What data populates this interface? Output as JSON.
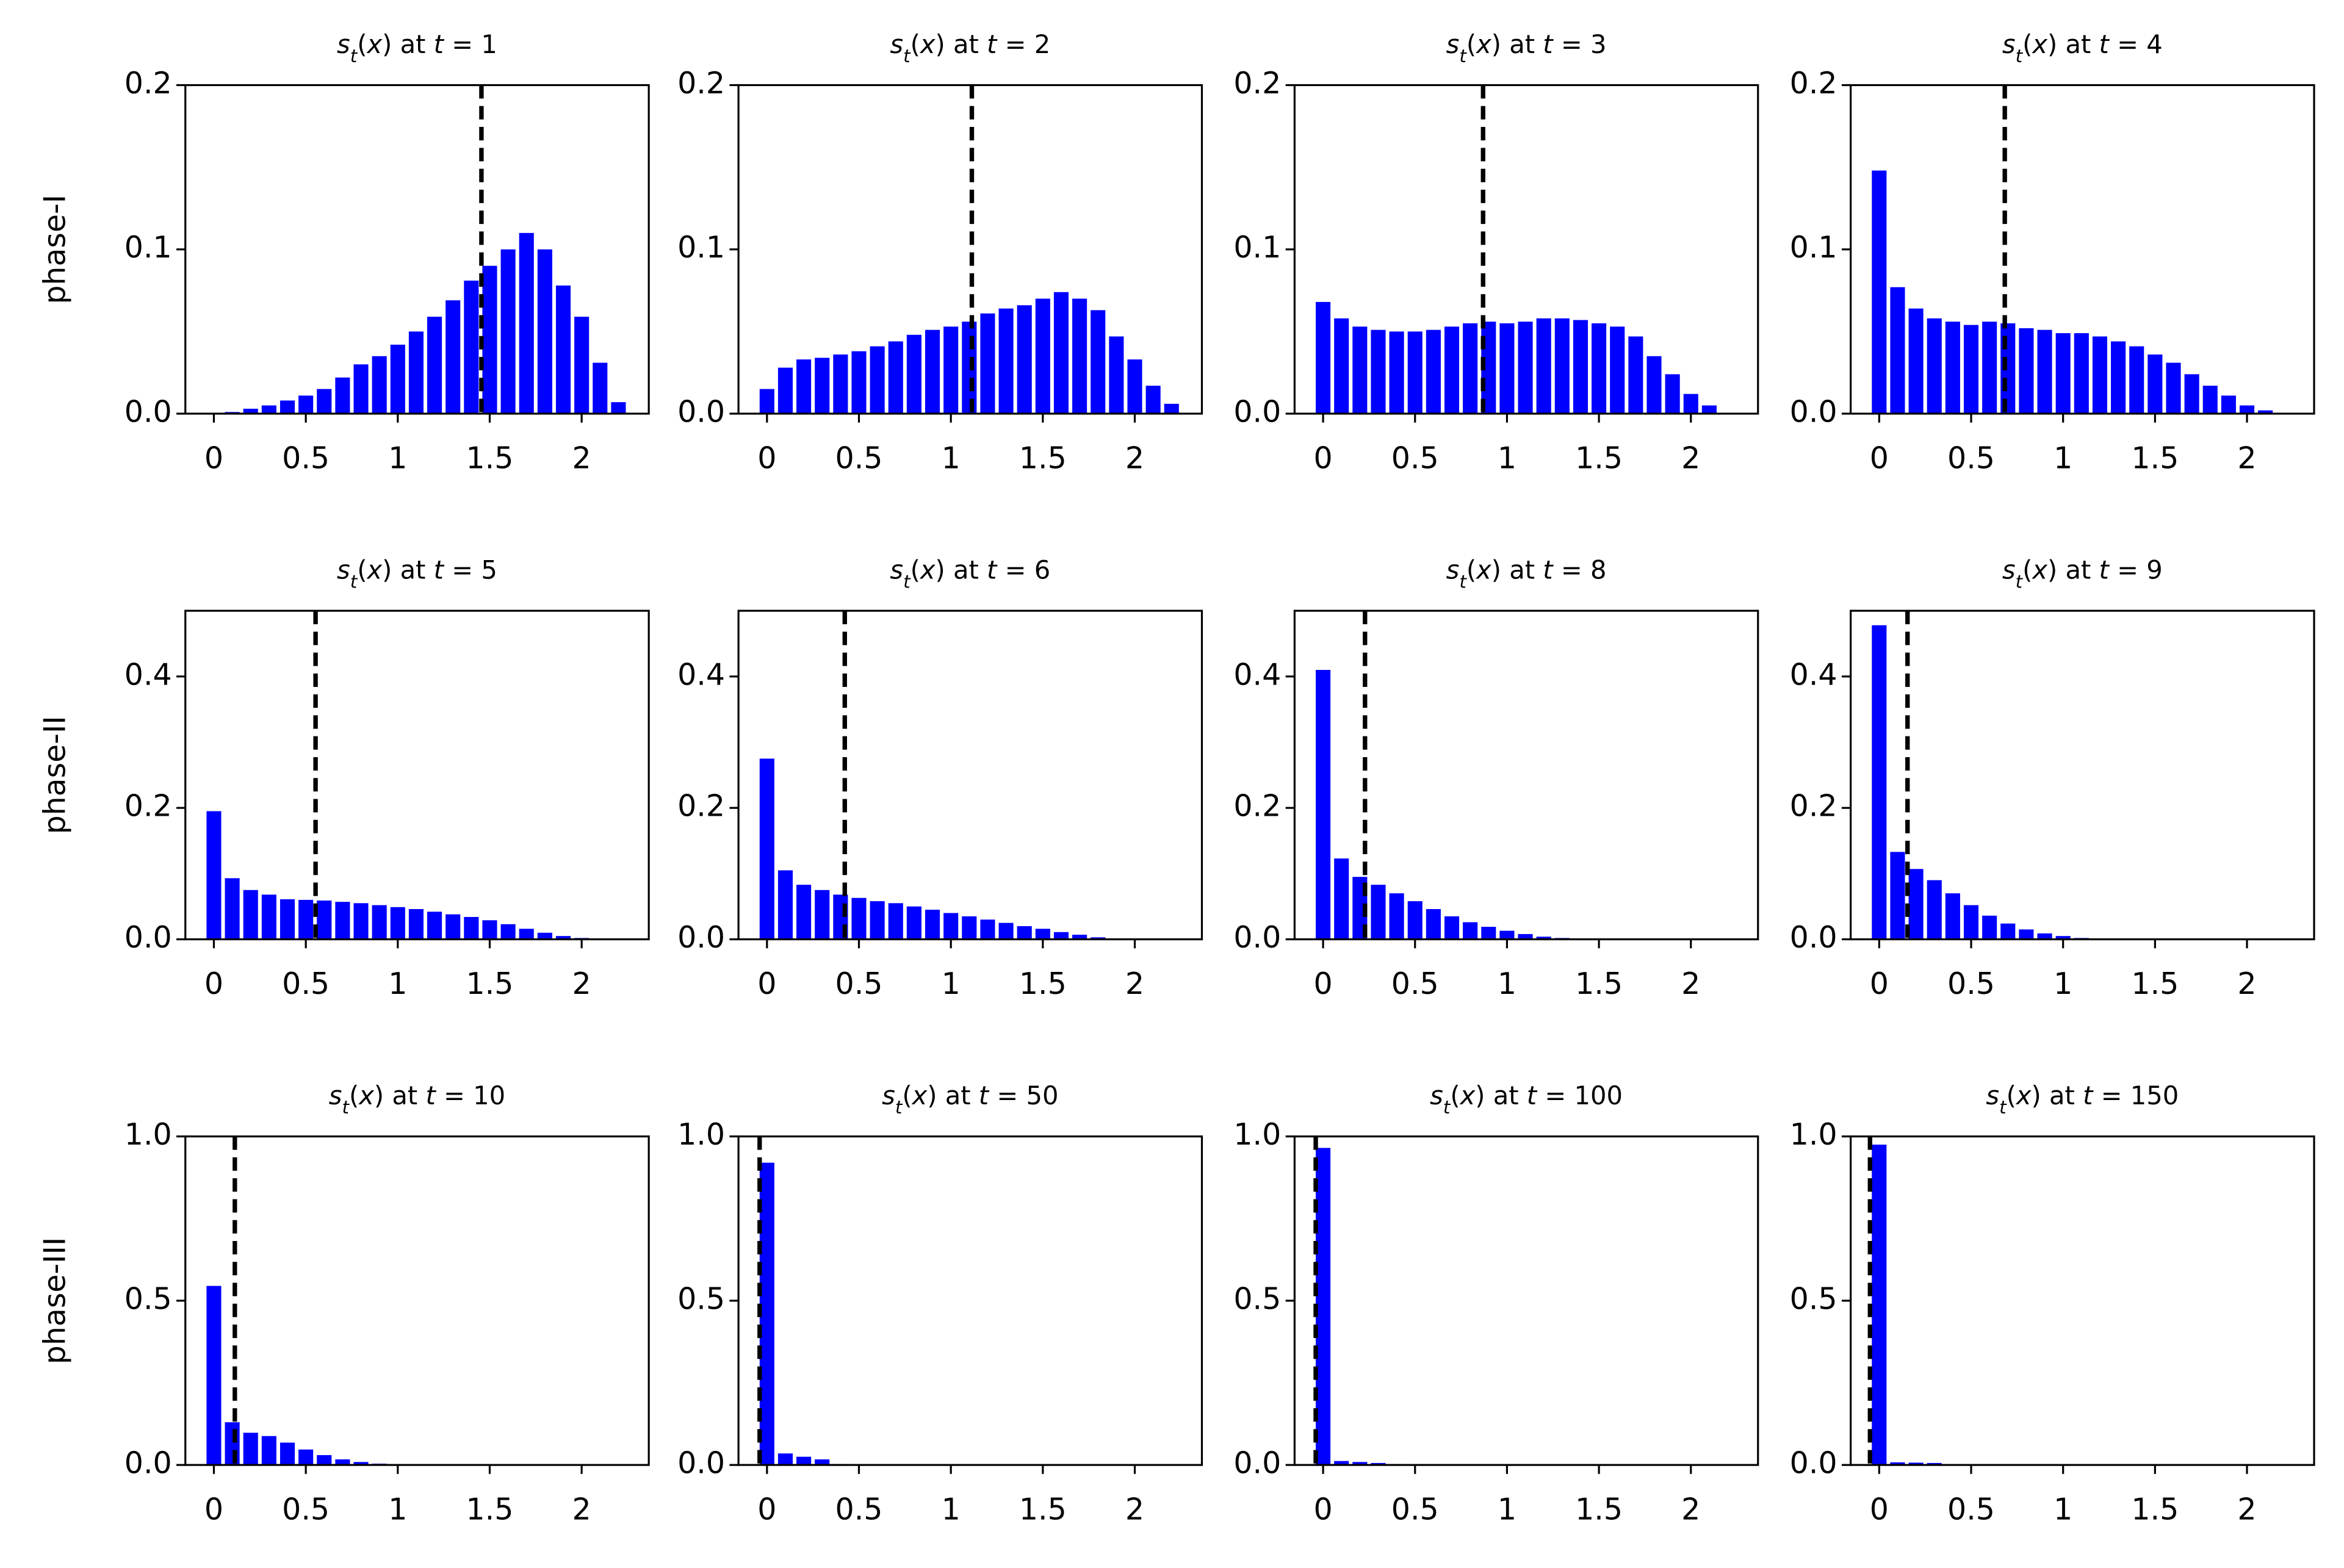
{
  "chart_data": [
    {
      "type": "bar",
      "title": "st(x) at t = 1",
      "ylabel": "phase-I",
      "color": "#0000ff",
      "vline": 1.455,
      "x": [
        0,
        0.1,
        0.2,
        0.3,
        0.4,
        0.5,
        0.6,
        0.7,
        0.8,
        0.9,
        1,
        1.1,
        1.2,
        1.3,
        1.4,
        1.5,
        1.6,
        1.7,
        1.8,
        1.9,
        2,
        2.1,
        2.2
      ],
      "values": [
        0,
        0.001,
        0.003,
        0.005,
        0.008,
        0.011,
        0.015,
        0.022,
        0.03,
        0.035,
        0.042,
        0.05,
        0.059,
        0.069,
        0.081,
        0.09,
        0.1,
        0.11,
        0.1,
        0.078,
        0.059,
        0.031,
        0.007
      ],
      "xlim": [
        -0.155,
        2.365
      ],
      "ylim": [
        0,
        0.2
      ],
      "xticks": [
        0,
        0.5,
        1,
        1.5,
        2
      ],
      "yticks": [
        {
          "value": 0,
          "label": "0.0"
        },
        0.1,
        0.2
      ]
    },
    {
      "type": "bar",
      "title": "st(x) at t = 2",
      "color": "#0000ff",
      "vline": 1.114,
      "x": [
        0,
        0.1,
        0.2,
        0.3,
        0.4,
        0.5,
        0.6,
        0.7,
        0.8,
        0.9,
        1,
        1.1,
        1.2,
        1.3,
        1.4,
        1.5,
        1.6,
        1.7,
        1.8,
        1.9,
        2,
        2.1,
        2.2
      ],
      "values": [
        0.015,
        0.028,
        0.033,
        0.034,
        0.036,
        0.038,
        0.041,
        0.044,
        0.048,
        0.051,
        0.053,
        0.056,
        0.061,
        0.064,
        0.066,
        0.07,
        0.074,
        0.07,
        0.063,
        0.047,
        0.033,
        0.017,
        0.006
      ],
      "xlim": [
        -0.155,
        2.365
      ],
      "ylim": [
        0,
        0.2
      ],
      "xticks": [
        0,
        0.5,
        1,
        1.5,
        2
      ],
      "yticks": [
        {
          "value": 0,
          "label": "0.0"
        },
        0.1,
        0.2
      ]
    },
    {
      "type": "bar",
      "title": "st(x) at t = 3",
      "color": "#0000ff",
      "vline": 0.87,
      "x": [
        0,
        0.1,
        0.2,
        0.3,
        0.4,
        0.5,
        0.6,
        0.7,
        0.8,
        0.9,
        1,
        1.1,
        1.2,
        1.3,
        1.4,
        1.5,
        1.6,
        1.7,
        1.8,
        1.9,
        2,
        2.1,
        2.2
      ],
      "values": [
        0.068,
        0.058,
        0.053,
        0.051,
        0.05,
        0.05,
        0.051,
        0.053,
        0.055,
        0.056,
        0.055,
        0.056,
        0.058,
        0.058,
        0.057,
        0.055,
        0.053,
        0.047,
        0.035,
        0.024,
        0.012,
        0.005,
        0
      ],
      "xlim": [
        -0.155,
        2.365
      ],
      "ylim": [
        0,
        0.2
      ],
      "xticks": [
        0,
        0.5,
        1,
        1.5,
        2
      ],
      "yticks": [
        {
          "value": 0,
          "label": "0.0"
        },
        0.1,
        0.2
      ]
    },
    {
      "type": "bar",
      "title": "st(x) at t = 4",
      "color": "#0000ff",
      "vline": 0.683,
      "x": [
        0,
        0.1,
        0.2,
        0.3,
        0.4,
        0.5,
        0.6,
        0.7,
        0.8,
        0.9,
        1,
        1.1,
        1.2,
        1.3,
        1.4,
        1.5,
        1.6,
        1.7,
        1.8,
        1.9,
        2,
        2.1,
        2.2
      ],
      "values": [
        0.148,
        0.077,
        0.064,
        0.058,
        0.056,
        0.054,
        0.056,
        0.055,
        0.052,
        0.051,
        0.049,
        0.049,
        0.047,
        0.044,
        0.041,
        0.036,
        0.031,
        0.024,
        0.017,
        0.011,
        0.005,
        0.002,
        0
      ],
      "xlim": [
        -0.155,
        2.365
      ],
      "ylim": [
        0,
        0.2
      ],
      "xticks": [
        0,
        0.5,
        1,
        1.5,
        2
      ],
      "yticks": [
        {
          "value": 0,
          "label": "0.0"
        },
        0.1,
        0.2
      ]
    },
    {
      "type": "bar",
      "title": "st(x) at t = 5",
      "ylabel": "phase-II",
      "color": "#0000ff",
      "vline": 0.553,
      "x": [
        0,
        0.1,
        0.2,
        0.3,
        0.4,
        0.5,
        0.6,
        0.7,
        0.8,
        0.9,
        1,
        1.1,
        1.2,
        1.3,
        1.4,
        1.5,
        1.6,
        1.7,
        1.8,
        1.9,
        2,
        2.1,
        2.2
      ],
      "values": [
        0.195,
        0.093,
        0.075,
        0.068,
        0.061,
        0.06,
        0.059,
        0.057,
        0.055,
        0.052,
        0.049,
        0.046,
        0.042,
        0.038,
        0.034,
        0.029,
        0.023,
        0.016,
        0.01,
        0.005,
        0.002,
        0.001,
        0
      ],
      "xlim": [
        -0.155,
        2.365
      ],
      "ylim": [
        0,
        0.5
      ],
      "xticks": [
        0,
        0.5,
        1,
        1.5,
        2
      ],
      "yticks": [
        {
          "value": 0,
          "label": "0.0"
        },
        0.2,
        0.4
      ]
    },
    {
      "type": "bar",
      "title": "st(x) at t = 6",
      "color": "#0000ff",
      "vline": 0.423,
      "x": [
        0,
        0.1,
        0.2,
        0.3,
        0.4,
        0.5,
        0.6,
        0.7,
        0.8,
        0.9,
        1,
        1.1,
        1.2,
        1.3,
        1.4,
        1.5,
        1.6,
        1.7,
        1.8,
        1.9,
        2,
        2.1,
        2.2
      ],
      "values": [
        0.275,
        0.105,
        0.083,
        0.075,
        0.068,
        0.063,
        0.058,
        0.055,
        0.05,
        0.045,
        0.04,
        0.035,
        0.03,
        0.025,
        0.02,
        0.016,
        0.011,
        0.007,
        0.003,
        0.001,
        0,
        0,
        0
      ],
      "xlim": [
        -0.155,
        2.365
      ],
      "ylim": [
        0,
        0.5
      ],
      "xticks": [
        0,
        0.5,
        1,
        1.5,
        2
      ],
      "yticks": [
        {
          "value": 0,
          "label": "0.0"
        },
        0.2,
        0.4
      ]
    },
    {
      "type": "bar",
      "title": "st(x) at t = 8",
      "color": "#0000ff",
      "vline": 0.228,
      "x": [
        0,
        0.1,
        0.2,
        0.3,
        0.4,
        0.5,
        0.6,
        0.7,
        0.8,
        0.9,
        1,
        1.1,
        1.2,
        1.3,
        1.4,
        1.5,
        1.6,
        1.7,
        1.8,
        1.9,
        2,
        2.1,
        2.2
      ],
      "values": [
        0.41,
        0.123,
        0.095,
        0.083,
        0.07,
        0.058,
        0.046,
        0.035,
        0.026,
        0.019,
        0.013,
        0.008,
        0.004,
        0.002,
        0.001,
        0,
        0,
        0,
        0,
        0,
        0,
        0,
        0
      ],
      "xlim": [
        -0.155,
        2.365
      ],
      "ylim": [
        0,
        0.5
      ],
      "xticks": [
        0,
        0.5,
        1,
        1.5,
        2
      ],
      "yticks": [
        {
          "value": 0,
          "label": "0.0"
        },
        0.2,
        0.4
      ]
    },
    {
      "type": "bar",
      "title": "st(x) at t = 9",
      "color": "#0000ff",
      "vline": 0.154,
      "x": [
        0,
        0.1,
        0.2,
        0.3,
        0.4,
        0.5,
        0.6,
        0.7,
        0.8,
        0.9,
        1,
        1.1,
        1.2,
        1.3,
        1.4,
        1.5,
        1.6,
        1.7,
        1.8,
        1.9,
        2,
        2.1,
        2.2
      ],
      "values": [
        0.478,
        0.133,
        0.107,
        0.09,
        0.07,
        0.052,
        0.036,
        0.024,
        0.015,
        0.009,
        0.005,
        0.002,
        0.001,
        0,
        0,
        0,
        0,
        0,
        0,
        0,
        0,
        0,
        0
      ],
      "xlim": [
        -0.155,
        2.365
      ],
      "ylim": [
        0,
        0.5
      ],
      "xticks": [
        0,
        0.5,
        1,
        1.5,
        2
      ],
      "yticks": [
        {
          "value": 0,
          "label": "0.0"
        },
        0.2,
        0.4
      ]
    },
    {
      "type": "bar",
      "title": "st(x) at t = 10",
      "ylabel": "phase-III",
      "color": "#0000ff",
      "vline": 0.114,
      "x": [
        0,
        0.1,
        0.2,
        0.3,
        0.4,
        0.5,
        0.6,
        0.7,
        0.8,
        0.9,
        1,
        1.1,
        1.2,
        1.3,
        1.4,
        1.5,
        1.6,
        1.7,
        1.8,
        1.9,
        2,
        2.1,
        2.2
      ],
      "values": [
        0.545,
        0.13,
        0.098,
        0.088,
        0.068,
        0.047,
        0.03,
        0.017,
        0.009,
        0.004,
        0.002,
        0.001,
        0,
        0,
        0,
        0,
        0,
        0,
        0,
        0,
        0,
        0,
        0
      ],
      "xlim": [
        -0.155,
        2.365
      ],
      "ylim": [
        0,
        1
      ],
      "xticks": [
        0,
        0.5,
        1,
        1.5,
        2
      ],
      "yticks": [
        {
          "value": 0,
          "label": "0.0"
        },
        0.5,
        {
          "value": 1,
          "label": "1.0"
        }
      ]
    },
    {
      "type": "bar",
      "title": "st(x) at t = 50",
      "color": "#0000ff",
      "vline": -0.04,
      "x": [
        0,
        0.1,
        0.2,
        0.3,
        0.4,
        0.5,
        0.6,
        0.7,
        0.8,
        0.9,
        1,
        1.1,
        1.2,
        1.3,
        1.4,
        1.5,
        1.6,
        1.7,
        1.8,
        1.9,
        2,
        2.1,
        2.2
      ],
      "values": [
        0.92,
        0.035,
        0.025,
        0.017,
        0.003,
        0.001,
        0,
        0,
        0,
        0,
        0,
        0,
        0,
        0,
        0,
        0,
        0,
        0,
        0,
        0,
        0,
        0,
        0
      ],
      "xlim": [
        -0.155,
        2.365
      ],
      "ylim": [
        0,
        1
      ],
      "xticks": [
        0,
        0.5,
        1,
        1.5,
        2
      ],
      "yticks": [
        {
          "value": 0,
          "label": "0.0"
        },
        0.5,
        {
          "value": 1,
          "label": "1.0"
        }
      ]
    },
    {
      "type": "bar",
      "title": "st(x) at t = 100",
      "color": "#0000ff",
      "vline": -0.04,
      "x": [
        0,
        0.1,
        0.2,
        0.3,
        0.4,
        0.5,
        0.6,
        0.7,
        0.8,
        0.9,
        1,
        1.1,
        1.2,
        1.3,
        1.4,
        1.5,
        1.6,
        1.7,
        1.8,
        1.9,
        2,
        2.1,
        2.2
      ],
      "values": [
        0.965,
        0.012,
        0.009,
        0.006,
        0.003,
        0.002,
        0.001,
        0,
        0,
        0,
        0,
        0,
        0,
        0,
        0,
        0,
        0,
        0,
        0,
        0,
        0,
        0,
        0
      ],
      "xlim": [
        -0.155,
        2.365
      ],
      "ylim": [
        0,
        1
      ],
      "xticks": [
        0,
        0.5,
        1,
        1.5,
        2
      ],
      "yticks": [
        {
          "value": 0,
          "label": "0.0"
        },
        0.5,
        {
          "value": 1,
          "label": "1.0"
        }
      ]
    },
    {
      "type": "bar",
      "title": "st(x) at t = 150",
      "color": "#0000ff",
      "vline": -0.05,
      "x": [
        0,
        0.1,
        0.2,
        0.3,
        0.4,
        0.5,
        0.6,
        0.7,
        0.8,
        0.9,
        1,
        1.1,
        1.2,
        1.3,
        1.4,
        1.5,
        1.6,
        1.7,
        1.8,
        1.9,
        2,
        2.1,
        2.2
      ],
      "values": [
        0.975,
        0.008,
        0.007,
        0.006,
        0.002,
        0.001,
        0,
        0,
        0,
        0,
        0,
        0,
        0,
        0,
        0,
        0,
        0,
        0,
        0,
        0,
        0,
        0,
        0
      ],
      "xlim": [
        -0.155,
        2.365
      ],
      "ylim": [
        0,
        1
      ],
      "xticks": [
        0,
        0.5,
        1,
        1.5,
        2
      ],
      "yticks": [
        {
          "value": 0,
          "label": "0.0"
        },
        0.5,
        {
          "value": 1,
          "label": "1.0"
        }
      ]
    }
  ]
}
